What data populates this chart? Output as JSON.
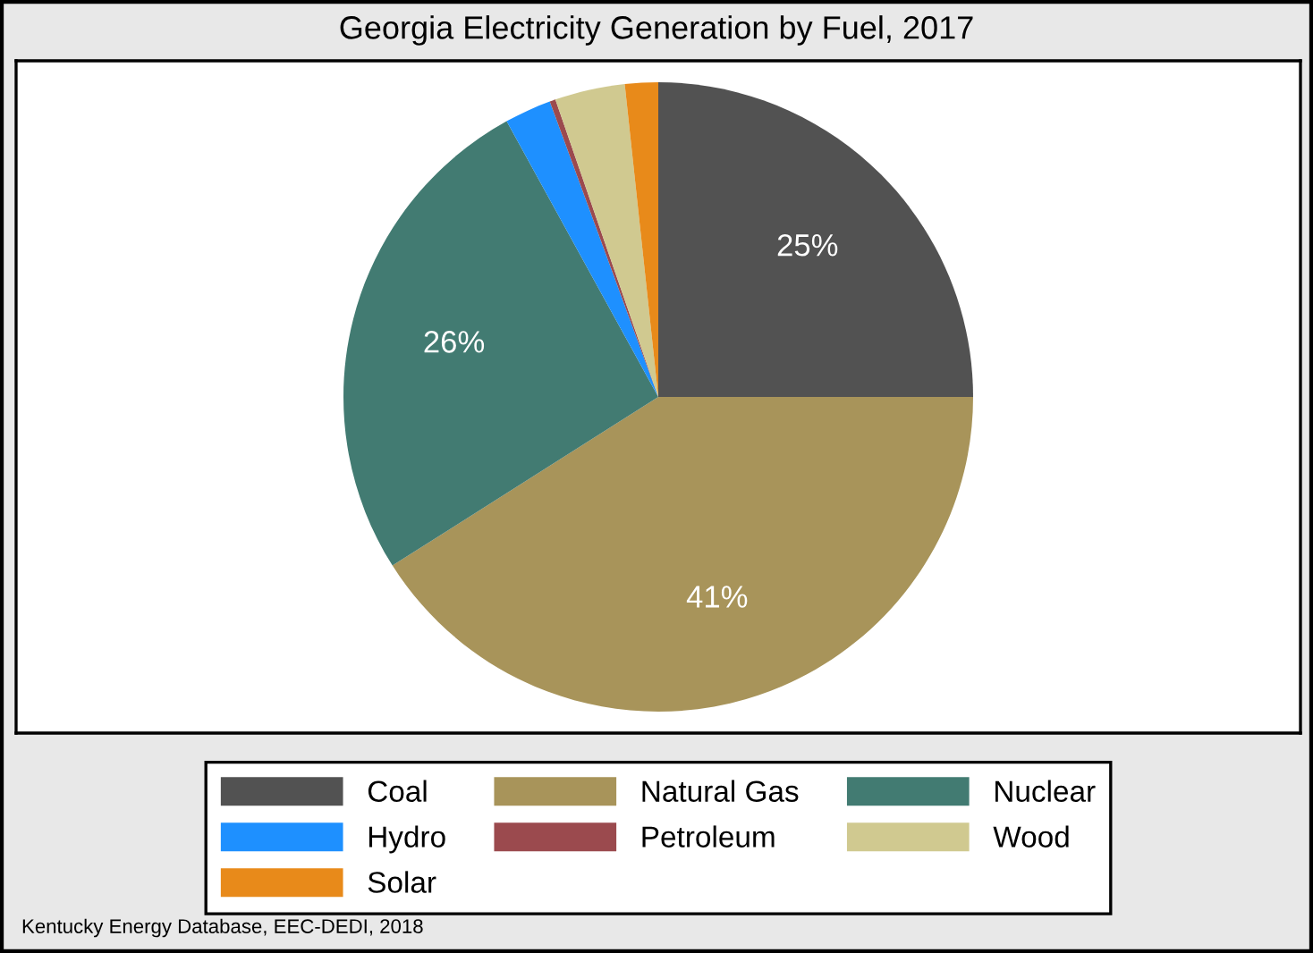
{
  "chart_data": {
    "type": "pie",
    "title": "Georgia Electricity Generation by Fuel, 2017",
    "categories": [
      "Coal",
      "Natural Gas",
      "Nuclear",
      "Hydro",
      "Petroleum",
      "Wood",
      "Solar"
    ],
    "values": [
      25,
      41,
      26,
      2.4,
      0.3,
      3.6,
      1.7
    ],
    "colors": [
      "#525252",
      "#a8945a",
      "#427b72",
      "#1e90ff",
      "#9b4a4e",
      "#d0c990",
      "#e88a1a"
    ],
    "value_labels": [
      "25%",
      "41%",
      "26%",
      null,
      null,
      null,
      null
    ],
    "legend": "bottom",
    "annotations": [
      "Kentucky Energy Database, EEC-DEDI, 2018"
    ]
  }
}
